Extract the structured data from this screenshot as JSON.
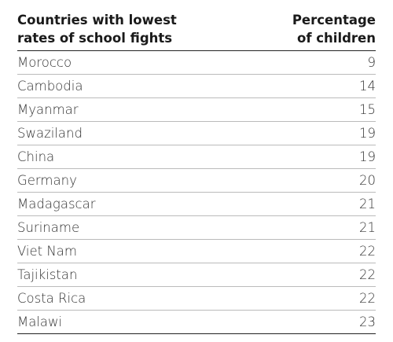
{
  "table": {
    "headers": [
      [
        "Countries with lowest",
        "rates of school fights"
      ],
      [
        "Percentage",
        "of children"
      ]
    ],
    "rows": [
      [
        "Morocco",
        9
      ],
      [
        "Cambodia",
        14
      ],
      [
        "Myanmar",
        15
      ],
      [
        "Swaziland",
        19
      ],
      [
        "China",
        19
      ],
      [
        "Germany",
        20
      ],
      [
        "Madagascar",
        21
      ],
      [
        "Suriname",
        21
      ],
      [
        "Viet Nam",
        22
      ],
      [
        "Tajikistan",
        22
      ],
      [
        "Costa Rica",
        22
      ],
      [
        "Malawi",
        23
      ]
    ]
  }
}
